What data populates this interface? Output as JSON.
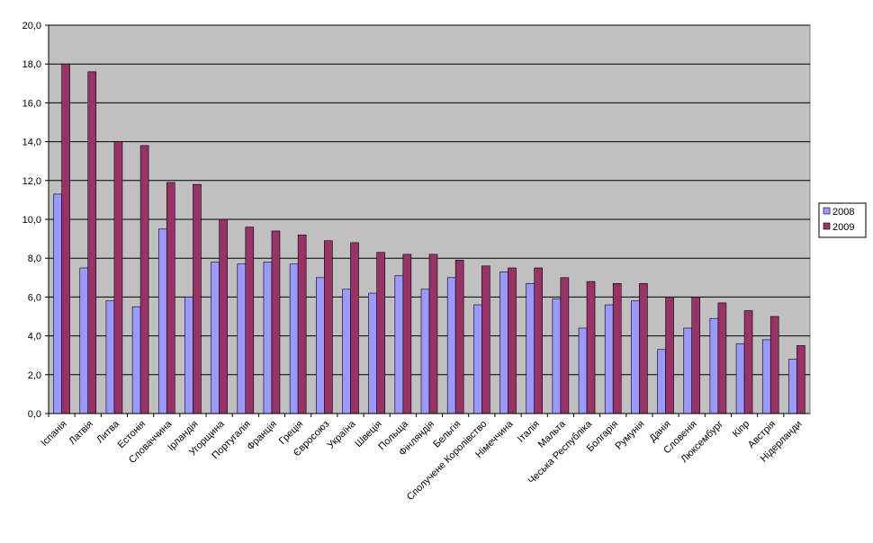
{
  "chart_data": {
    "type": "bar",
    "categories": [
      "Іспанія",
      "Латвія",
      "Литва",
      "Естонія",
      "Словаччина",
      "Ірландія",
      "Угорщина",
      "Португалія",
      "Франція",
      "Греція",
      "Євросоюз",
      "Україна",
      "Швеція",
      "Польща",
      "Фінляндія",
      "Бельгія",
      "Сполучене Королівство",
      "Німеччина",
      "Італія",
      "Мальта",
      "Чеська Республіка",
      "Болгарія",
      "Румунія",
      "Данія",
      "Словенія",
      "Люксембург",
      "Кіпр",
      "Австрія",
      "Нідерланди"
    ],
    "series": [
      {
        "name": "2008",
        "color": "#9999ff",
        "values": [
          11.3,
          7.5,
          5.8,
          5.5,
          9.5,
          6.0,
          7.8,
          7.7,
          7.8,
          7.7,
          7.0,
          6.4,
          6.2,
          7.1,
          6.4,
          7.0,
          5.6,
          7.3,
          6.7,
          5.9,
          4.4,
          5.6,
          5.8,
          3.3,
          4.4,
          4.9,
          3.6,
          3.8,
          2.8
        ]
      },
      {
        "name": "2009",
        "color": "#993366",
        "values": [
          18.0,
          17.6,
          14.0,
          13.8,
          11.9,
          11.8,
          10.0,
          9.6,
          9.4,
          9.2,
          8.9,
          8.8,
          8.3,
          8.2,
          8.2,
          7.9,
          7.6,
          7.5,
          7.5,
          7.0,
          6.8,
          6.7,
          6.7,
          6.0,
          6.0,
          5.7,
          5.3,
          5.0,
          3.5
        ]
      }
    ],
    "ylim": [
      0,
      20
    ],
    "yticks": [
      {
        "value": 0,
        "label": "0,0"
      },
      {
        "value": 2,
        "label": "2,0"
      },
      {
        "value": 4,
        "label": "4,0"
      },
      {
        "value": 6,
        "label": "6,0"
      },
      {
        "value": 8,
        "label": "8,0"
      },
      {
        "value": 10,
        "label": "10,0"
      },
      {
        "value": 12,
        "label": "12,0"
      },
      {
        "value": 14,
        "label": "14,0"
      },
      {
        "value": 16,
        "label": "16,0"
      },
      {
        "value": 18,
        "label": "18,0"
      },
      {
        "value": 20,
        "label": "20,0"
      }
    ],
    "grid": true,
    "legend": "right",
    "plot_background": "#c0c0c0"
  }
}
